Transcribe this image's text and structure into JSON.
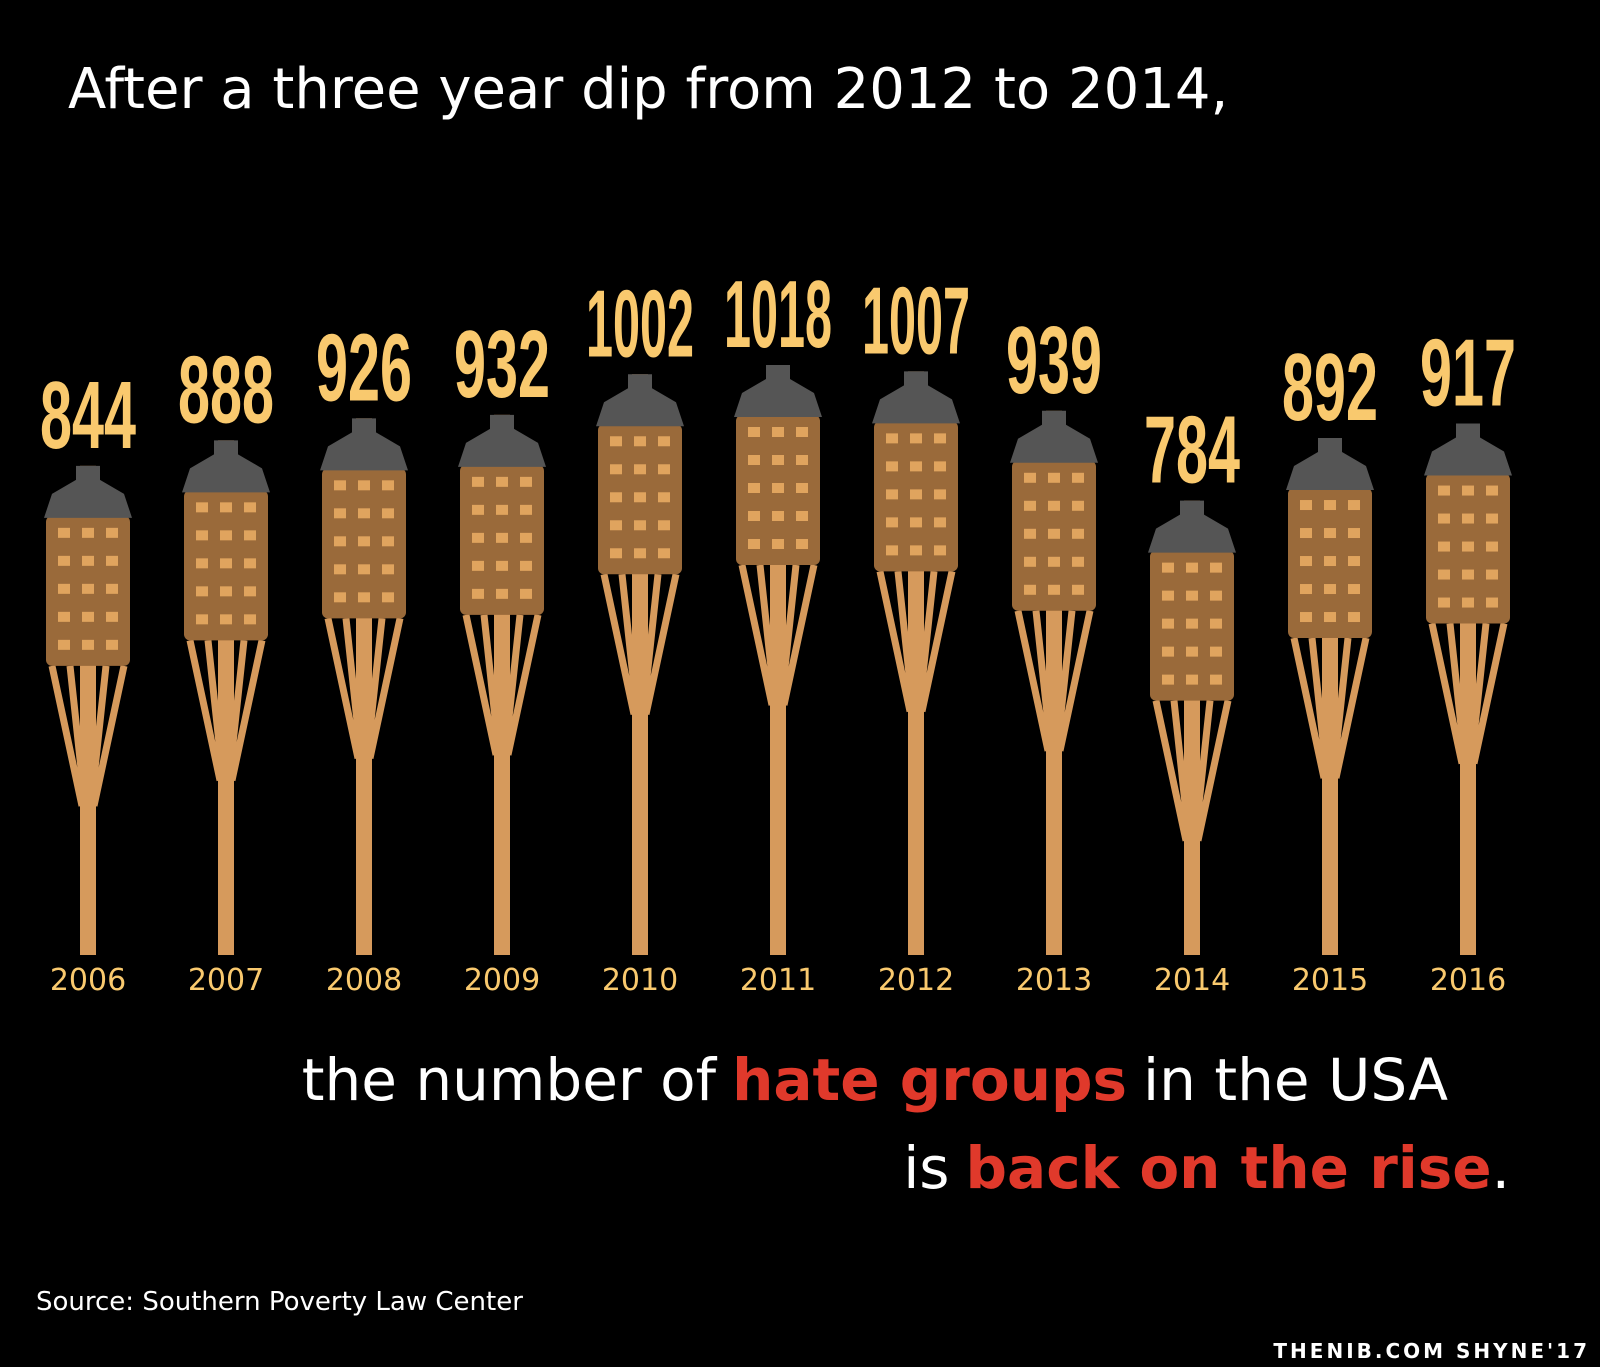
{
  "chart_data": {
    "type": "torch",
    "title": "After a three year dip from 2012 to 2014,",
    "categories": [
      "2006",
      "2007",
      "2008",
      "2009",
      "2010",
      "2011",
      "2012",
      "2013",
      "2014",
      "2015",
      "2016"
    ],
    "values": [
      844,
      888,
      926,
      932,
      1002,
      1018,
      1007,
      939,
      784,
      892,
      917
    ],
    "color": "#d69a5c",
    "value_label_color": "#f9c96e",
    "caption": {
      "line1": [
        "the number of",
        "hate groups",
        "in the USA"
      ],
      "line2": [
        "is",
        "back on the rise",
        "."
      ]
    },
    "highlight_color": "#e0392b",
    "source": "Source: Southern Poverty Law Center",
    "credit": "THENIB.COM SHYNE'17"
  }
}
